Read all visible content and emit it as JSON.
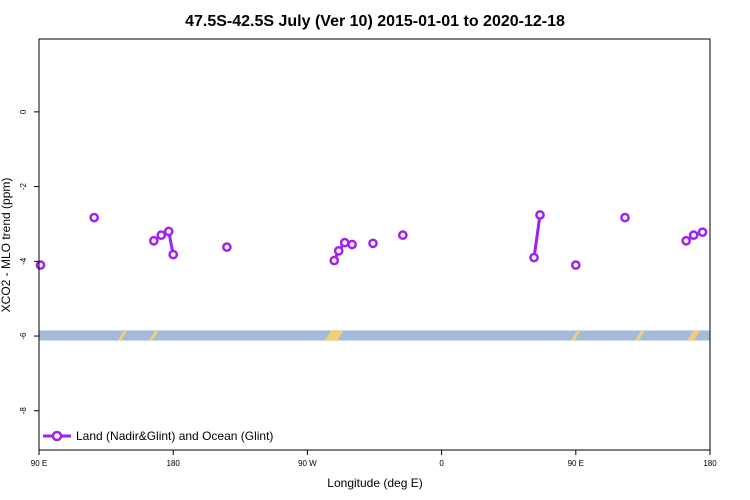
{
  "chart_data": {
    "type": "line",
    "title": "47.5S-42.5S July (Ver 10)   2015-01-01 to 2020-12-18",
    "xlabel": "Longitude (deg E)",
    "ylabel": "XCO2 - MLO trend (ppm)",
    "xlim": [
      90,
      540
    ],
    "ylim": [
      -9.05,
      1.95
    ],
    "x_ticks": [
      {
        "value": 90,
        "label": "90 E"
      },
      {
        "value": 180,
        "label": "180"
      },
      {
        "value": 270,
        "label": "90 W"
      },
      {
        "value": 360,
        "label": "0"
      },
      {
        "value": 450,
        "label": "90 E"
      },
      {
        "value": 540,
        "label": "180"
      }
    ],
    "y_ticks": [
      {
        "value": 0,
        "label": "0"
      },
      {
        "value": -2,
        "label": "-2"
      },
      {
        "value": -4,
        "label": "-4"
      },
      {
        "value": -6,
        "label": "-6"
      },
      {
        "value": -8,
        "label": "-8"
      }
    ],
    "series": [
      {
        "name": "Land (Nadir&Glint) and Ocean (Glint)",
        "color": "#a020f0",
        "segments": [
          [
            {
              "x": 91,
              "y": -4.1
            }
          ],
          [
            {
              "x": 127,
              "y": -2.83
            }
          ],
          [
            {
              "x": 167,
              "y": -3.45
            }
          ],
          [
            {
              "x": 172,
              "y": -3.3
            },
            {
              "x": 177,
              "y": -3.2
            },
            {
              "x": 180,
              "y": -3.82
            }
          ],
          [
            {
              "x": 216,
              "y": -3.62
            }
          ],
          [
            {
              "x": 288,
              "y": -3.98
            },
            {
              "x": 291,
              "y": -3.72
            },
            {
              "x": 295,
              "y": -3.5
            }
          ],
          [
            {
              "x": 300,
              "y": -3.55
            }
          ],
          [
            {
              "x": 314,
              "y": -3.52
            }
          ],
          [
            {
              "x": 334,
              "y": -3.3
            }
          ],
          [
            {
              "x": 422,
              "y": -3.9
            },
            {
              "x": 426,
              "y": -2.76
            }
          ],
          [
            {
              "x": 450,
              "y": -4.1
            }
          ],
          [
            {
              "x": 483,
              "y": -2.83
            }
          ],
          [
            {
              "x": 524,
              "y": -3.45
            },
            {
              "x": 529,
              "y": -3.3
            },
            {
              "x": 535,
              "y": -3.22
            }
          ]
        ]
      }
    ],
    "land_band": {
      "y_range": [
        -5.85,
        -6.12
      ],
      "color": "#a5bad8",
      "land_color": "#f5cc78",
      "land_marks": [
        146,
        167,
        285,
        287,
        289,
        291,
        450,
        493,
        528,
        530
      ]
    },
    "legend": {
      "placement": "bottom-left"
    },
    "grid": false
  }
}
